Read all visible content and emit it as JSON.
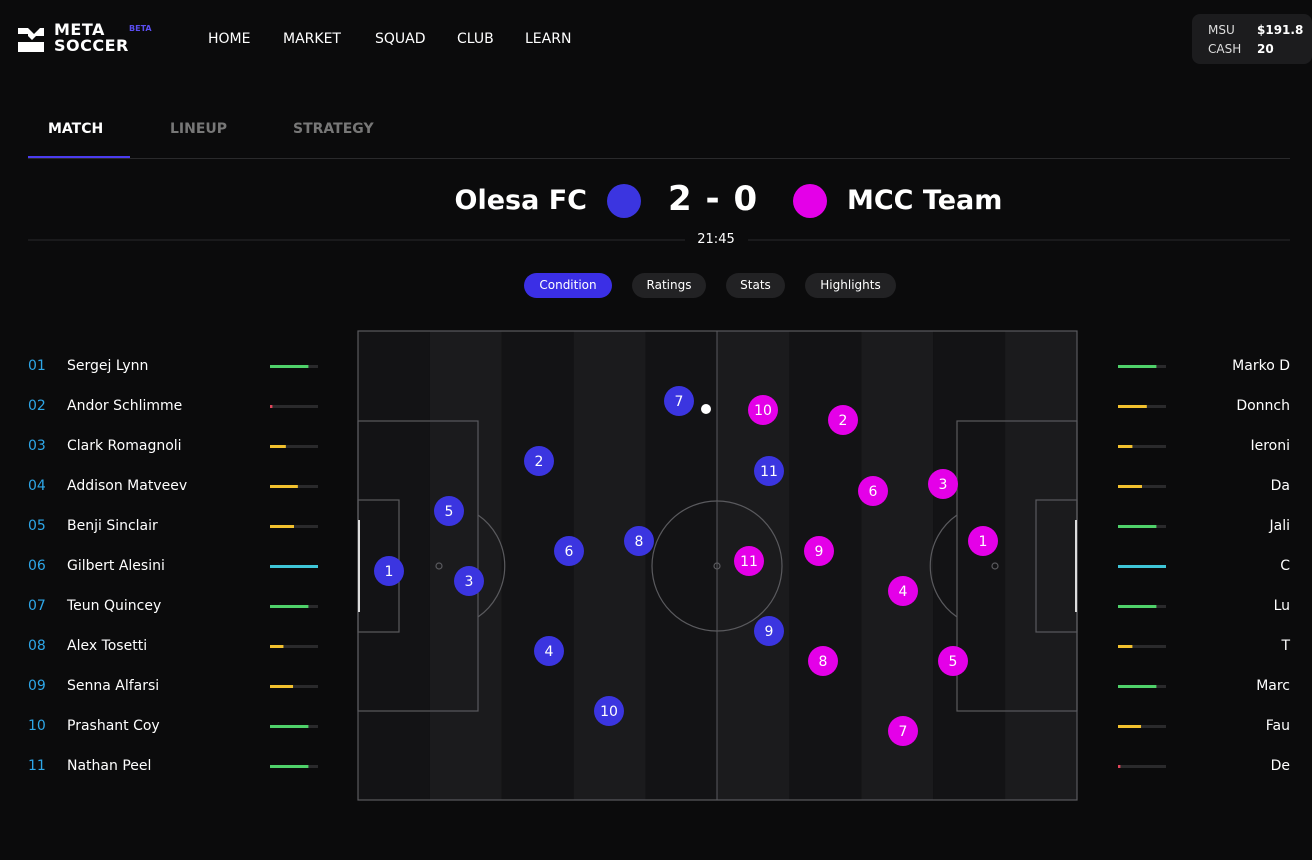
{
  "nav": {
    "logo_top": "META",
    "logo_bottom": "SOCCER",
    "badge": "BETA",
    "links": [
      "HOME",
      "MARKET",
      "SQUAD",
      "CLUB",
      "LEARN"
    ]
  },
  "wallet": [
    {
      "label": "MSU",
      "value": "$191.8"
    },
    {
      "label": "CASH",
      "value": "20"
    }
  ],
  "tabs": [
    "MATCH",
    "LINEUP",
    "STRATEGY"
  ],
  "match": {
    "home": "Olesa FC",
    "score": "2 - 0",
    "away": "MCC Team",
    "time": "21:45"
  },
  "views": [
    "Condition",
    "Ratings",
    "Stats",
    "Highlights"
  ],
  "home_players": [
    {
      "number": "01",
      "name": "Sergej Lynn",
      "condition": 80,
      "color": "#4fd16a"
    },
    {
      "number": "02",
      "name": "Andor Schlimme",
      "condition": 5,
      "color": "#e0455a"
    },
    {
      "number": "03",
      "name": "Clark Romagnoli",
      "condition": 33,
      "color": "#f2c12e"
    },
    {
      "number": "04",
      "name": "Addison Matveev",
      "condition": 58,
      "color": "#f2c12e"
    },
    {
      "number": "05",
      "name": "Benji Sinclair",
      "condition": 50,
      "color": "#f2c12e"
    },
    {
      "number": "06",
      "name": "Gilbert Alesini",
      "condition": 100,
      "color": "#3fc6d8"
    },
    {
      "number": "07",
      "name": "Teun Quincey",
      "condition": 80,
      "color": "#4fd16a"
    },
    {
      "number": "08",
      "name": "Alex Tosetti",
      "condition": 28,
      "color": "#f2c12e"
    },
    {
      "number": "09",
      "name": "Senna Alfarsi",
      "condition": 48,
      "color": "#f2c12e"
    },
    {
      "number": "10",
      "name": "Prashant Coy",
      "condition": 80,
      "color": "#4fd16a"
    },
    {
      "number": "11",
      "name": "Nathan Peel",
      "condition": 80,
      "color": "#4fd16a"
    }
  ],
  "away_players": [
    {
      "name": "Marko D",
      "condition": 80,
      "color": "#4fd16a"
    },
    {
      "name": "Donnch",
      "condition": 60,
      "color": "#f2c12e"
    },
    {
      "name": "Ieroni",
      "condition": 30,
      "color": "#f2c12e"
    },
    {
      "name": "Da",
      "condition": 50,
      "color": "#f2c12e"
    },
    {
      "name": "Jali",
      "condition": 80,
      "color": "#4fd16a"
    },
    {
      "name": "C",
      "condition": 100,
      "color": "#3fc6d8"
    },
    {
      "name": "Lu",
      "condition": 80,
      "color": "#4fd16a"
    },
    {
      "name": "T",
      "condition": 30,
      "color": "#f2c12e"
    },
    {
      "name": "Marc",
      "condition": 80,
      "color": "#4fd16a"
    },
    {
      "name": "Fau",
      "condition": 48,
      "color": "#f2c12e"
    },
    {
      "name": "De",
      "condition": 5,
      "color": "#e0455a"
    }
  ],
  "pitch": {
    "home_color": "#3b35e0",
    "away_color": "#e400e8",
    "home_markers": [
      "1",
      "5",
      "3",
      "2",
      "6",
      "4",
      "10",
      "8",
      "7",
      "11",
      "9"
    ],
    "away_markers": [
      "10",
      "2",
      "6",
      "3",
      "1",
      "11",
      "9",
      "4",
      "8",
      "5",
      "7"
    ]
  }
}
